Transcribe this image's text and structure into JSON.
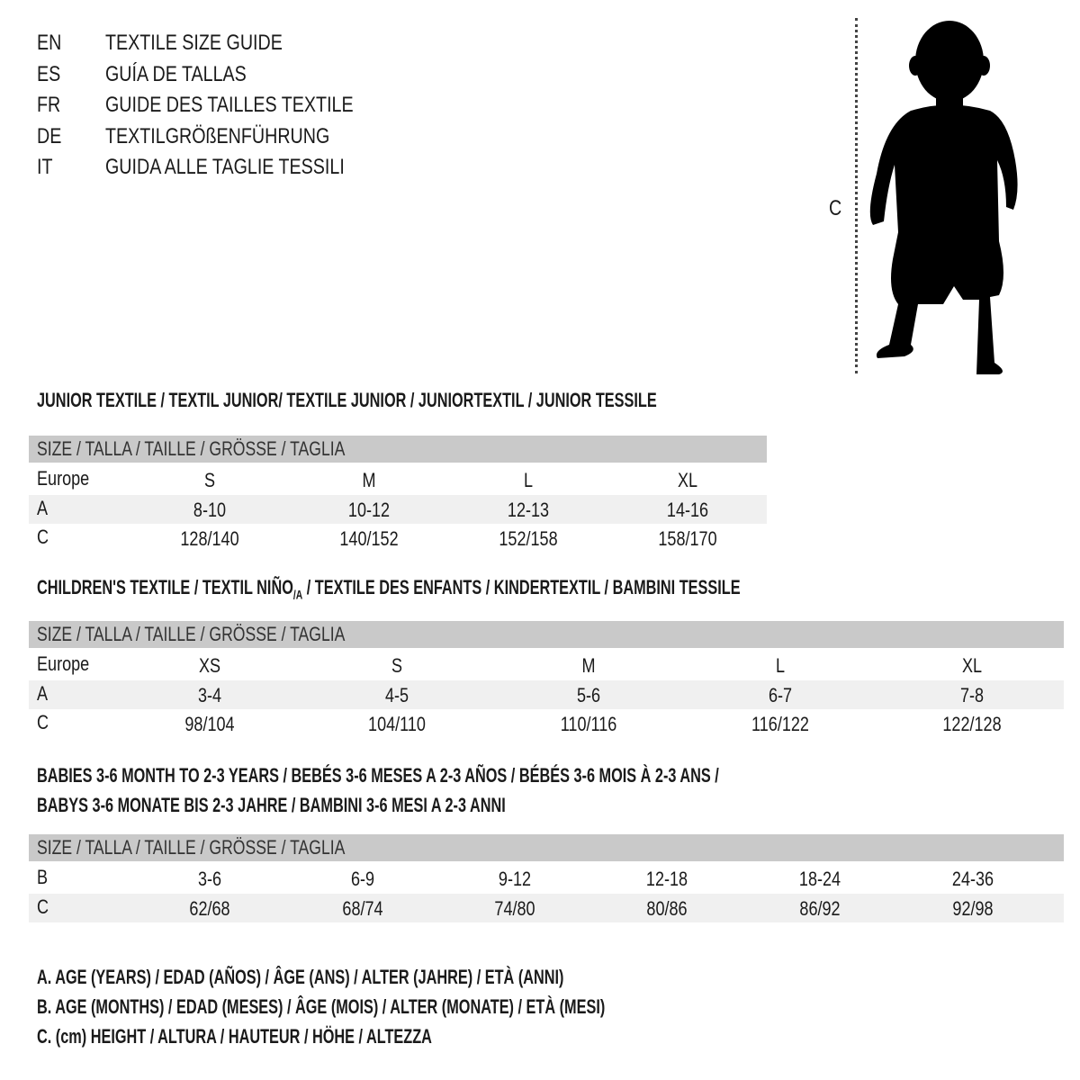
{
  "languages": [
    {
      "code": "EN",
      "title": "TEXTILE SIZE GUIDE"
    },
    {
      "code": "ES",
      "title": "GUÍA DE TALLAS"
    },
    {
      "code": "FR",
      "title": "GUIDE DES TAILLES TEXTILE"
    },
    {
      "code": "DE",
      "title": "TEXTILGRÖßENFÜHRUNG"
    },
    {
      "code": "IT",
      "title": "GUIDA ALLE TAGLIE TESSILI"
    }
  ],
  "figure": {
    "height_marker": "C",
    "icon": "child-silhouette"
  },
  "size_header": "SIZE / TALLA / TAILLE / GRÖSSE / TAGLIA",
  "junior": {
    "title": "JUNIOR TEXTILE / TEXTIL JUNIOR/ TEXTILE JUNIOR / JUNIORTEXTIL / JUNIOR TESSILE",
    "rows": [
      {
        "label": "Europe",
        "values": [
          "S",
          "M",
          "L",
          "XL"
        ]
      },
      {
        "label": "A",
        "values": [
          "8-10",
          "10-12",
          "12-13",
          "14-16"
        ]
      },
      {
        "label": "C",
        "values": [
          "128/140",
          "140/152",
          "152/158",
          "158/170"
        ]
      }
    ]
  },
  "children": {
    "title_pre": "CHILDREN'S TEXTILE / TEXTIL NIÑO",
    "title_sub": "/A",
    "title_post": " / TEXTILE DES ENFANTS / KINDERTEXTIL / BAMBINI TESSILE",
    "rows": [
      {
        "label": "Europe",
        "values": [
          "XS",
          "S",
          "M",
          "L",
          "XL"
        ]
      },
      {
        "label": "A",
        "values": [
          "3-4",
          "4-5",
          "5-6",
          "6-7",
          "7-8"
        ]
      },
      {
        "label": "C",
        "values": [
          "98/104",
          "104/110",
          "110/116",
          "116/122",
          "122/128"
        ]
      }
    ]
  },
  "babies": {
    "title_line1": "BABIES 3-6 MONTH TO 2-3 YEARS / BEBÉS 3-6 MESES A 2-3 AÑOS / BÉBÉS 3-6 MOIS À 2-3 ANS /",
    "title_line2": "BABYS 3-6 MONATE BIS 2-3 JAHRE / BAMBINI 3-6 MESI A 2-3 ANNI",
    "rows": [
      {
        "label": "B",
        "values": [
          "3-6",
          "6-9",
          "9-12",
          "12-18",
          "18-24",
          "24-36"
        ]
      },
      {
        "label": "C",
        "values": [
          "62/68",
          "68/74",
          "74/80",
          "80/86",
          "86/92",
          "92/98"
        ]
      }
    ]
  },
  "legend": [
    "A. AGE (YEARS) / EDAD (AÑOS) / ÂGE (ANS) / ALTER (JAHRE) / ETÀ (ANNI)",
    "B. AGE (MONTHS) / EDAD (MESES) / ÂGE (MOIS) / ALTER (MONATE) / ETÀ (MESI)",
    "C. (cm) HEIGHT / ALTURA / HAUTEUR / HÖHE / ALTEZZA"
  ],
  "colors": {
    "header_bg": "#c9c9c9",
    "shade_row": "#f0f0f0"
  }
}
